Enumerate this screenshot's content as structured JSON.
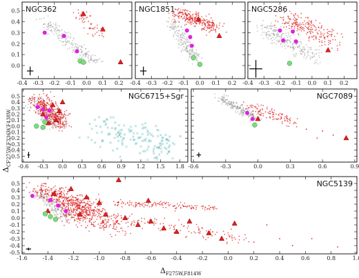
{
  "figure": {
    "xlabel_main": "Δ",
    "xlabel_sub": "F275W,F814W",
    "ylabel_main": "Δ",
    "ylabel_sub": "CF275W,F336W,F438W"
  },
  "colors": {
    "gray": "#9a9a9a",
    "red": "#e02020",
    "magenta": "#e020e0",
    "green": "#7ddc7d",
    "cyan": "#66bbbb",
    "axis": "#000000"
  },
  "chart_data": [
    {
      "type": "scatter",
      "title": "NGC362",
      "xlim": [
        -0.4,
        0.28
      ],
      "ylim": [
        -0.12,
        0.58
      ],
      "xticks": [
        "-0.4",
        "-0.3",
        "-0.2",
        "-0.1",
        "0.0",
        "0.1",
        "0.2"
      ],
      "xtick_values": [
        -0.4,
        -0.3,
        -0.2,
        -0.1,
        0.0,
        0.1,
        0.2
      ],
      "yticks": [
        "0.0",
        "0.1",
        "0.2",
        "0.3",
        "0.4",
        "0.5"
      ],
      "ytick_values": [
        0.0,
        0.1,
        0.2,
        0.3,
        0.4,
        0.5
      ],
      "gray_clouds": [
        {
          "x0": -0.26,
          "y0": 0.4,
          "x1": 0.06,
          "y1": 0.02,
          "w": 0.04,
          "n": 220
        }
      ],
      "red_clouds": [
        {
          "x0": -0.06,
          "y0": 0.48,
          "x1": 0.08,
          "y1": 0.28,
          "w": 0.04,
          "n": 50
        }
      ],
      "triangles": [
        {
          "x": 0.1,
          "y": 0.33
        },
        {
          "x": 0.21,
          "y": 0.03
        },
        {
          "x": -0.02,
          "y": 0.47
        }
      ],
      "magenta": [
        {
          "x": -0.26,
          "y": 0.3
        },
        {
          "x": -0.14,
          "y": 0.27
        },
        {
          "x": -0.06,
          "y": 0.13
        }
      ],
      "green": [
        {
          "x": -0.04,
          "y": 0.04
        },
        {
          "x": -0.02,
          "y": 0.03
        }
      ],
      "errorbar": {
        "x": -0.35,
        "y": -0.05,
        "dx": 0.02,
        "dy": 0.04
      }
    },
    {
      "type": "scatter",
      "title": "NGC1851",
      "xlim": [
        -0.4,
        0.28
      ],
      "ylim": [
        -0.12,
        0.58
      ],
      "xticks": [
        "-0.4",
        "-0.3",
        "-0.2",
        "-0.1",
        "0.0",
        "0.1",
        "0.2"
      ],
      "xtick_values": [
        -0.4,
        -0.3,
        -0.2,
        -0.1,
        0.0,
        0.1,
        0.2
      ],
      "yticks": [],
      "ytick_values": [
        0.0,
        0.1,
        0.2,
        0.3,
        0.4,
        0.5
      ],
      "gray_clouds": [
        {
          "x0": -0.18,
          "y0": 0.4,
          "x1": -0.02,
          "y1": 0.05,
          "w": 0.035,
          "n": 200
        }
      ],
      "red_clouds": [
        {
          "x0": -0.14,
          "y0": 0.48,
          "x1": 0.1,
          "y1": 0.35,
          "w": 0.05,
          "n": 260
        }
      ],
      "triangles": [
        {
          "x": 0.12,
          "y": 0.27
        },
        {
          "x": -0.01,
          "y": 0.42
        }
      ],
      "magenta": [
        {
          "x": -0.08,
          "y": 0.32
        },
        {
          "x": -0.06,
          "y": 0.26
        },
        {
          "x": -0.05,
          "y": 0.18
        }
      ],
      "green": [
        {
          "x": -0.04,
          "y": 0.07
        },
        {
          "x": 0.0,
          "y": 0.01
        }
      ],
      "errorbar": {
        "x": -0.35,
        "y": -0.05,
        "dx": 0.02,
        "dy": 0.04
      }
    },
    {
      "type": "scatter",
      "title": "NGC5286",
      "xlim": [
        -0.4,
        0.28
      ],
      "ylim": [
        -0.12,
        0.58
      ],
      "xticks": [
        "-0.4",
        "-0.3",
        "-0.2",
        "-0.1",
        "0.0",
        "0.1",
        "0.2"
      ],
      "xtick_values": [
        -0.4,
        -0.3,
        -0.2,
        -0.1,
        0.0,
        0.1,
        0.2
      ],
      "yticks": [],
      "ytick_values": [
        0.0,
        0.1,
        0.2,
        0.3,
        0.4,
        0.5
      ],
      "gray_clouds": [
        {
          "x0": -0.3,
          "y0": 0.34,
          "x1": 0.02,
          "y1": 0.08,
          "w": 0.06,
          "n": 260
        }
      ],
      "red_clouds": [
        {
          "x0": -0.18,
          "y0": 0.45,
          "x1": 0.14,
          "y1": 0.22,
          "w": 0.07,
          "n": 220
        }
      ],
      "triangles": [
        {
          "x": 0.1,
          "y": 0.14
        }
      ],
      "magenta": [
        {
          "x": -0.2,
          "y": 0.32
        },
        {
          "x": -0.12,
          "y": 0.31
        },
        {
          "x": -0.18,
          "y": 0.23
        },
        {
          "x": -0.1,
          "y": 0.22
        }
      ],
      "green": [
        {
          "x": -0.14,
          "y": 0.02
        }
      ],
      "errorbar": {
        "x": -0.35,
        "y": -0.03,
        "dx": 0.04,
        "dy": 0.08
      }
    },
    {
      "type": "scatter",
      "title": "NGC6715+Sgr",
      "xlim": [
        -0.62,
        1.92
      ],
      "ylim": [
        -0.6,
        0.62
      ],
      "xticks": [
        "-0.6",
        "-0.3",
        "0.0",
        "0.3",
        "0.6",
        "0.9",
        "1.2",
        "1.5",
        "1.8"
      ],
      "xtick_values": [
        -0.6,
        -0.3,
        0.0,
        0.3,
        0.6,
        0.9,
        1.2,
        1.5,
        1.8
      ],
      "yticks": [
        "-0.5",
        "-0.4",
        "-0.3",
        "-0.2",
        "-0.1",
        "0.0",
        "0.1",
        "0.2",
        "0.3",
        "0.4",
        "0.5"
      ],
      "ytick_values": [
        -0.5,
        -0.4,
        -0.3,
        -0.2,
        -0.1,
        0.0,
        0.1,
        0.2,
        0.3,
        0.4,
        0.5
      ],
      "gray_clouds": [
        {
          "x0": -0.42,
          "y0": 0.42,
          "x1": -0.05,
          "y1": 0.02,
          "w": 0.12,
          "n": 220
        }
      ],
      "red_clouds": [
        {
          "x0": -0.38,
          "y0": 0.45,
          "x1": 0.0,
          "y1": 0.05,
          "w": 0.13,
          "n": 380
        }
      ],
      "cyan_clouds": [
        {
          "x0": 0.55,
          "y0": -0.02,
          "x1": 1.7,
          "y1": -0.32,
          "w": 0.22,
          "n": 150
        }
      ],
      "triangles": [
        {
          "x": -0.05,
          "y": 0.25
        },
        {
          "x": -0.15,
          "y": 0.35
        },
        {
          "x": -0.3,
          "y": 0.2
        },
        {
          "x": 0.0,
          "y": 0.4
        },
        {
          "x": -0.22,
          "y": 0.05
        },
        {
          "x": -0.1,
          "y": 0.1
        }
      ],
      "magenta": [
        {
          "x": -0.38,
          "y": 0.32
        },
        {
          "x": -0.3,
          "y": 0.28
        },
        {
          "x": -0.2,
          "y": 0.26
        },
        {
          "x": -0.25,
          "y": 0.15
        }
      ],
      "green": [
        {
          "x": -0.4,
          "y": 0.0
        },
        {
          "x": -0.3,
          "y": -0.02
        },
        {
          "x": -0.27,
          "y": 0.07
        }
      ],
      "errorbar": {
        "x": -0.52,
        "y": -0.48,
        "dx": 0.02,
        "dy": 0.05
      }
    },
    {
      "type": "scatter",
      "title": "NGC7089",
      "xlim": [
        -0.62,
        0.92
      ],
      "ylim": [
        -0.6,
        0.62
      ],
      "xticks": [
        "-0.6",
        "-0.3",
        "0.0",
        "0.3",
        "0.6",
        "0.9"
      ],
      "xtick_values": [
        -0.6,
        -0.3,
        0.0,
        0.3,
        0.6,
        0.9
      ],
      "yticks": [],
      "ytick_values": [
        -0.5,
        -0.4,
        -0.3,
        -0.2,
        -0.1,
        0.0,
        0.1,
        0.2,
        0.3,
        0.4,
        0.5
      ],
      "gray_clouds": [
        {
          "x0": -0.35,
          "y0": 0.48,
          "x1": -0.02,
          "y1": 0.12,
          "w": 0.05,
          "n": 230
        }
      ],
      "red_clouds": [
        {
          "x0": -0.1,
          "y0": 0.35,
          "x1": 0.35,
          "y1": 0.05,
          "w": 0.07,
          "n": 110
        }
      ],
      "red_sparse": [
        {
          "x": 0.45,
          "y": -0.05
        },
        {
          "x": 0.6,
          "y": -0.08
        },
        {
          "x": 0.7,
          "y": -0.15
        },
        {
          "x": 0.55,
          "y": -0.2
        }
      ],
      "triangles": [
        {
          "x": 0.82,
          "y": -0.2
        },
        {
          "x": 0.0,
          "y": 0.12
        }
      ],
      "magenta": [
        {
          "x": -0.1,
          "y": 0.22
        },
        {
          "x": -0.05,
          "y": 0.12
        }
      ],
      "green": [
        {
          "x": -0.03,
          "y": 0.02
        }
      ],
      "errorbar": {
        "x": -0.55,
        "y": -0.48,
        "dx": 0.02,
        "dy": 0.04
      }
    },
    {
      "type": "scatter",
      "title": "NGC5139",
      "xlim": [
        -1.6,
        1.0
      ],
      "ylim": [
        -0.52,
        0.6
      ],
      "xticks": [
        "-1.6",
        "-1.4",
        "-1.2",
        "-1.0",
        "-0.8",
        "-0.6",
        "-0.4",
        "-0.2",
        "0.0",
        "0.2",
        "0.4",
        "0.6",
        "0.8",
        "1.0"
      ],
      "xtick_values": [
        -1.6,
        -1.4,
        -1.2,
        -1.0,
        -0.8,
        -0.6,
        -0.4,
        -0.2,
        0.0,
        0.2,
        0.4,
        0.6,
        0.8,
        1.0
      ],
      "yticks": [
        "-0.5",
        "-0.4",
        "-0.3",
        "-0.2",
        "-0.1",
        "0.0",
        "0.1",
        "0.2",
        "0.3",
        "0.4",
        "0.5"
      ],
      "ytick_values": [
        -0.5,
        -0.4,
        -0.3,
        -0.2,
        -0.1,
        0.0,
        0.1,
        0.2,
        0.3,
        0.4,
        0.5
      ],
      "gray_clouds": [
        {
          "x0": -1.48,
          "y0": 0.38,
          "x1": -1.22,
          "y1": -0.02,
          "w": 0.06,
          "n": 200
        }
      ],
      "red_clouds": [
        {
          "x0": -1.45,
          "y0": 0.42,
          "x1": -1.05,
          "y1": 0.12,
          "w": 0.1,
          "n": 420
        },
        {
          "x0": -1.3,
          "y0": 0.15,
          "x1": -0.85,
          "y1": -0.12,
          "w": 0.12,
          "n": 300
        },
        {
          "x0": -0.9,
          "y0": 0.22,
          "x1": -0.1,
          "y1": 0.15,
          "w": 0.04,
          "n": 140
        },
        {
          "x0": -0.9,
          "y0": 0.02,
          "x1": 0.1,
          "y1": -0.3,
          "w": 0.08,
          "n": 120
        }
      ],
      "red_sparse": [
        {
          "x": 0.2,
          "y": -0.35
        },
        {
          "x": 0.4,
          "y": -0.3
        },
        {
          "x": 0.5,
          "y": -0.4
        },
        {
          "x": 0.65,
          "y": -0.3
        },
        {
          "x": 0.85,
          "y": -0.42
        },
        {
          "x": 0.3,
          "y": -0.1
        }
      ],
      "triangles": [
        {
          "x": -1.35,
          "y": 0.35
        },
        {
          "x": -1.22,
          "y": 0.42
        },
        {
          "x": -1.1,
          "y": 0.3
        },
        {
          "x": -1.0,
          "y": 0.22
        },
        {
          "x": -0.95,
          "y": 0.05
        },
        {
          "x": -0.8,
          "y": 0.0
        },
        {
          "x": -0.7,
          "y": -0.1
        },
        {
          "x": -0.6,
          "y": -0.05
        },
        {
          "x": -0.5,
          "y": -0.15
        },
        {
          "x": -0.4,
          "y": -0.2
        },
        {
          "x": -0.3,
          "y": -0.05
        },
        {
          "x": -0.15,
          "y": -0.22
        },
        {
          "x": -0.05,
          "y": -0.3
        },
        {
          "x": 0.05,
          "y": -0.08
        },
        {
          "x": -1.4,
          "y": 0.1
        },
        {
          "x": -1.15,
          "y": 0.05
        },
        {
          "x": -0.85,
          "y": 0.55
        },
        {
          "x": -0.62,
          "y": 0.25
        }
      ],
      "magenta": [
        {
          "x": -1.52,
          "y": 0.32
        },
        {
          "x": -1.38,
          "y": 0.26
        },
        {
          "x": -1.32,
          "y": 0.18
        },
        {
          "x": -1.26,
          "y": 0.1
        }
      ],
      "green": [
        {
          "x": -1.42,
          "y": 0.06
        },
        {
          "x": -1.38,
          "y": 0.02
        },
        {
          "x": -1.34,
          "y": -0.02
        }
      ],
      "errorbar": {
        "x": -1.55,
        "y": -0.45,
        "dx": 0.02,
        "dy": 0.02
      }
    }
  ]
}
